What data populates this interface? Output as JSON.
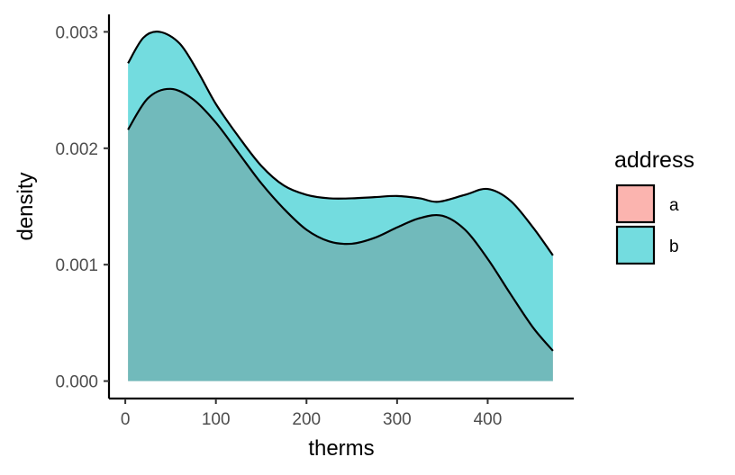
{
  "chart_data": {
    "type": "area",
    "xlabel": "therms",
    "ylabel": "density",
    "xlim": [
      -18,
      495
    ],
    "ylim": [
      -0.00015,
      0.00315
    ],
    "x_ticks": [
      0,
      100,
      200,
      300,
      400
    ],
    "x_tick_labels": [
      "0",
      "100",
      "200",
      "300",
      "400"
    ],
    "y_ticks": [
      0.0,
      0.001,
      0.002,
      0.003
    ],
    "y_tick_labels": [
      "0.000",
      "0.001",
      "0.002",
      "0.003"
    ],
    "grid": false,
    "legend": {
      "title": "address",
      "position": "right"
    },
    "series": [
      {
        "name": "a",
        "color": "#F8766D",
        "x": [
          3,
          25,
          50,
          75,
          100,
          125,
          150,
          175,
          200,
          225,
          250,
          275,
          300,
          325,
          350,
          375,
          400,
          425,
          450,
          472
        ],
        "y": [
          0.00216,
          0.00243,
          0.00251,
          0.00242,
          0.00222,
          0.00196,
          0.0017,
          0.00148,
          0.0013,
          0.0012,
          0.00118,
          0.00123,
          0.00132,
          0.0014,
          0.00142,
          0.0013,
          0.00105,
          0.00075,
          0.00046,
          0.00026
        ]
      },
      {
        "name": "b",
        "color": "#00BFC4",
        "x": [
          3,
          20,
          38,
          60,
          80,
          100,
          125,
          150,
          175,
          200,
          225,
          250,
          275,
          300,
          325,
          345,
          375,
          400,
          425,
          450,
          472
        ],
        "y": [
          0.00273,
          0.00295,
          0.003,
          0.0029,
          0.00266,
          0.00238,
          0.0021,
          0.00185,
          0.00168,
          0.0016,
          0.00157,
          0.00157,
          0.00158,
          0.00159,
          0.00157,
          0.00154,
          0.0016,
          0.00165,
          0.00155,
          0.00132,
          0.00108
        ]
      }
    ]
  }
}
